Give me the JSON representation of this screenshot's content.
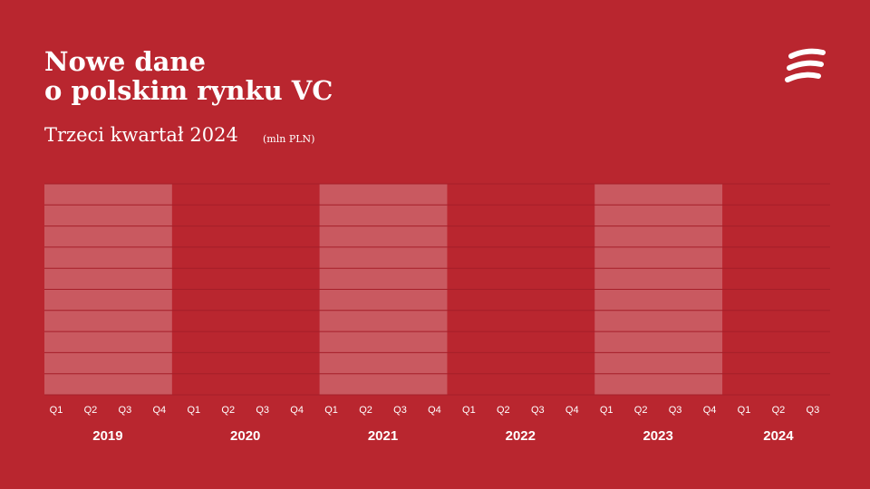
{
  "chart_data": {
    "type": "bar",
    "title_lines": [
      "Nowe dane",
      "o polskim rynku VC"
    ],
    "subtitle": "Trzeci kwartał 2024",
    "unit": "(mln PLN)",
    "groups": [
      {
        "name": "2019",
        "categories": [
          "Q1",
          "Q2",
          "Q3",
          "Q4"
        ]
      },
      {
        "name": "2020",
        "categories": [
          "Q1",
          "Q2",
          "Q3",
          "Q4"
        ]
      },
      {
        "name": "2021",
        "categories": [
          "Q1",
          "Q2",
          "Q3",
          "Q4"
        ]
      },
      {
        "name": "2022",
        "categories": [
          "Q1",
          "Q2",
          "Q3",
          "Q4"
        ]
      },
      {
        "name": "2023",
        "categories": [
          "Q1",
          "Q2",
          "Q3",
          "Q4"
        ]
      },
      {
        "name": "2024",
        "categories": [
          "Q1",
          "Q2",
          "Q3"
        ]
      }
    ]
  }
}
